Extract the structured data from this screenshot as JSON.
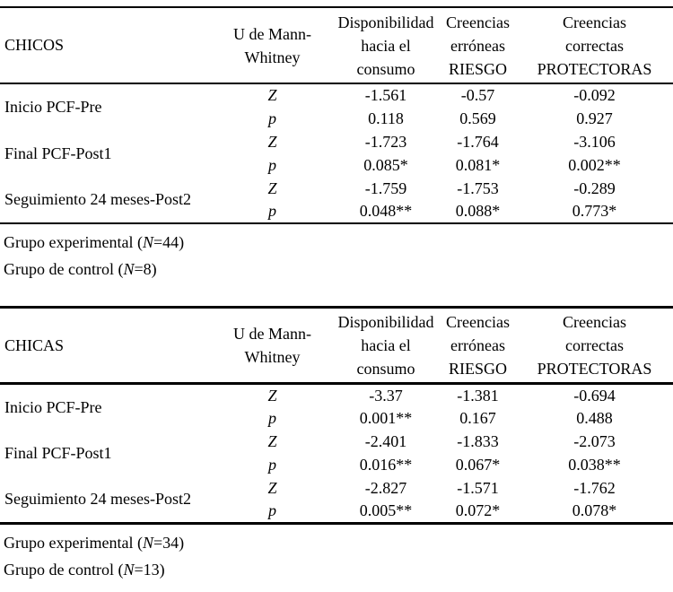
{
  "colors": {
    "background": "#ffffff",
    "text": "#000000",
    "rule": "#000000"
  },
  "tables": [
    {
      "group_label": "CHICOS",
      "test_header_lines": [
        "U de Mann-",
        "Whitney"
      ],
      "outcome_columns": [
        {
          "lines": [
            "Disponibilidad",
            "hacia el",
            "consumo"
          ]
        },
        {
          "lines": [
            "Creencias",
            "erróneas",
            "RIESGO"
          ]
        },
        {
          "lines": [
            "Creencias",
            "correctas",
            "PROTECTORAS"
          ]
        }
      ],
      "rows": [
        {
          "label": "Inicio PCF-Pre",
          "stats": [
            {
              "stat": "Z",
              "values": [
                "-1.561",
                "-0.57",
                "-0.092"
              ]
            },
            {
              "stat": "p",
              "values": [
                "0.118",
                "0.569",
                "0.927"
              ]
            }
          ]
        },
        {
          "label": "Final PCF-Post1",
          "stats": [
            {
              "stat": "Z",
              "values": [
                "-1.723",
                "-1.764",
                "-3.106"
              ]
            },
            {
              "stat": "p",
              "values": [
                "0.085*",
                "0.081*",
                "0.002**"
              ]
            }
          ]
        },
        {
          "label": "Seguimiento 24 meses-Post2",
          "stats": [
            {
              "stat": "Z",
              "values": [
                "-1.759",
                "-1.753",
                "-0.289"
              ]
            },
            {
              "stat": "p",
              "values": [
                "0.048**",
                "0.088*",
                "0.773*"
              ]
            }
          ]
        }
      ],
      "notes": [
        {
          "prefix": "Grupo experimental (",
          "symbol": "N",
          "suffix": "=44)"
        },
        {
          "prefix": "Grupo de control (",
          "symbol": "N",
          "suffix": "=8)"
        }
      ]
    },
    {
      "group_label": "CHICAS",
      "test_header_lines": [
        "U de Mann-",
        "Whitney"
      ],
      "outcome_columns": [
        {
          "lines": [
            "Disponibilidad",
            "hacia el",
            "consumo"
          ]
        },
        {
          "lines": [
            "Creencias",
            "erróneas",
            "RIESGO"
          ]
        },
        {
          "lines": [
            "Creencias",
            "correctas",
            "PROTECTORAS"
          ]
        }
      ],
      "rows": [
        {
          "label": "Inicio PCF-Pre",
          "stats": [
            {
              "stat": "Z",
              "values": [
                "-3.37",
                "-1.381",
                "-0.694"
              ]
            },
            {
              "stat": "p",
              "values": [
                "0.001**",
                "0.167",
                "0.488"
              ]
            }
          ]
        },
        {
          "label": "Final PCF-Post1",
          "stats": [
            {
              "stat": "Z",
              "values": [
                "-2.401",
                "-1.833",
                "-2.073"
              ]
            },
            {
              "stat": "p",
              "values": [
                "0.016**",
                "0.067*",
                "0.038**"
              ]
            }
          ]
        },
        {
          "label": "Seguimiento 24 meses-Post2",
          "stats": [
            {
              "stat": "Z",
              "values": [
                "-2.827",
                "-1.571",
                "-1.762"
              ]
            },
            {
              "stat": "p",
              "values": [
                "0.005**",
                "0.072*",
                "0.078*"
              ]
            }
          ]
        }
      ],
      "notes": [
        {
          "prefix": "Grupo experimental (",
          "symbol": "N",
          "suffix": "=34)"
        },
        {
          "prefix": "Grupo de control (",
          "symbol": "N",
          "suffix": "=13)"
        }
      ]
    }
  ]
}
